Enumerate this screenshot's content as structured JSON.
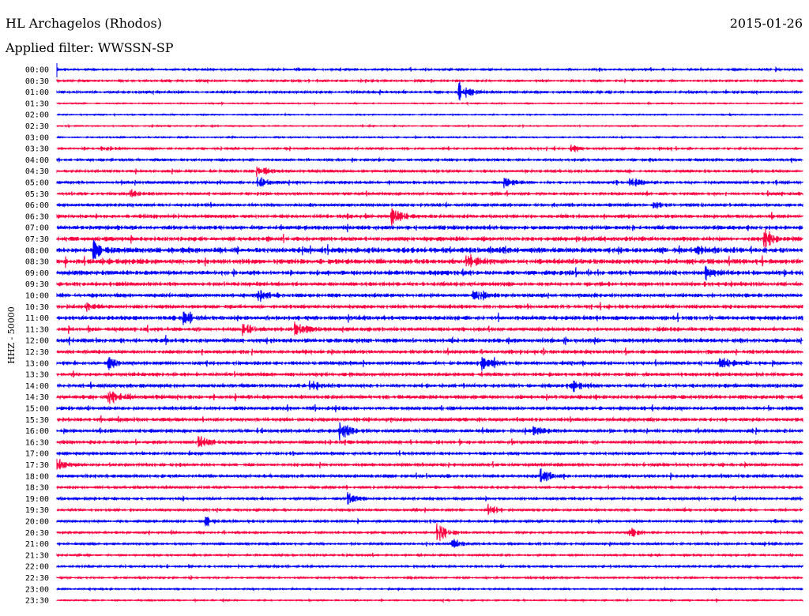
{
  "header": {
    "station": "HL Archagelos (Rhodos)",
    "filter": "Applied filter: WWSSN-SP",
    "date": "2015-01-26"
  },
  "chart_data": {
    "type": "line",
    "title": "HL Archagelos (Rhodos)",
    "ylabel": "HHZ - 50000",
    "row_minutes": 30,
    "colors": [
      "#0000ff",
      "#ff0040"
    ],
    "rows": [
      "00:00",
      "00:30",
      "01:00",
      "01:30",
      "02:00",
      "02:30",
      "03:00",
      "03:30",
      "04:00",
      "04:30",
      "05:00",
      "05:30",
      "06:00",
      "06:30",
      "07:00",
      "07:30",
      "08:00",
      "08:30",
      "09:00",
      "09:30",
      "10:00",
      "10:30",
      "11:00",
      "11:30",
      "12:00",
      "12:30",
      "13:00",
      "13:30",
      "14:00",
      "14:30",
      "15:00",
      "15:30",
      "16:00",
      "16:30",
      "17:00",
      "17:30",
      "18:00",
      "18:30",
      "19:00",
      "19:30",
      "20:00",
      "20:30",
      "21:00",
      "21:30",
      "22:00",
      "22:30",
      "23:00",
      "23:30"
    ],
    "noise_level": [
      1,
      1,
      1.2,
      0.6,
      0.6,
      0.6,
      0.7,
      1,
      1.2,
      1.3,
      1.4,
      1.3,
      1.6,
      1.8,
      2,
      2.2,
      2.8,
      2.6,
      2.4,
      2,
      2,
      1.8,
      2.2,
      2,
      2.2,
      1.8,
      1.8,
      1.8,
      1.9,
      1.9,
      1.8,
      1.8,
      1.8,
      1.7,
      1.5,
      1.4,
      1.6,
      1.3,
      1.3,
      1.2,
      1.2,
      1.1,
      1.1,
      1,
      1,
      0.9,
      0.8,
      0.7
    ],
    "events": [
      [
        0,
        0.32,
        4
      ],
      [
        2,
        0.54,
        14
      ],
      [
        7,
        0.06,
        4
      ],
      [
        7,
        0.69,
        4
      ],
      [
        9,
        0.27,
        9
      ],
      [
        10,
        0.27,
        7
      ],
      [
        10,
        0.6,
        6
      ],
      [
        10,
        0.77,
        7
      ],
      [
        11,
        0.1,
        5
      ],
      [
        12,
        0.8,
        5
      ],
      [
        13,
        0.45,
        10
      ],
      [
        15,
        0.95,
        12
      ],
      [
        16,
        0.05,
        10
      ],
      [
        16,
        0.86,
        6
      ],
      [
        17,
        0.55,
        6
      ],
      [
        18,
        0.87,
        7
      ],
      [
        20,
        0.27,
        9
      ],
      [
        20,
        0.56,
        6
      ],
      [
        21,
        0.04,
        5
      ],
      [
        22,
        0.17,
        7
      ],
      [
        23,
        0.25,
        9
      ],
      [
        23,
        0.32,
        9
      ],
      [
        26,
        0.07,
        7
      ],
      [
        26,
        0.57,
        8
      ],
      [
        26,
        0.89,
        8
      ],
      [
        28,
        0.34,
        9
      ],
      [
        28,
        0.69,
        8
      ],
      [
        29,
        0.07,
        10
      ],
      [
        32,
        0.38,
        12
      ],
      [
        32,
        0.64,
        6
      ],
      [
        33,
        0.19,
        8
      ],
      [
        35,
        0,
        8
      ],
      [
        36,
        0.65,
        10
      ],
      [
        38,
        0.39,
        8
      ],
      [
        39,
        0.58,
        7
      ],
      [
        40,
        0.2,
        6
      ],
      [
        41,
        0.51,
        14
      ],
      [
        41,
        0.77,
        6
      ],
      [
        42,
        0.53,
        6
      ]
    ]
  }
}
